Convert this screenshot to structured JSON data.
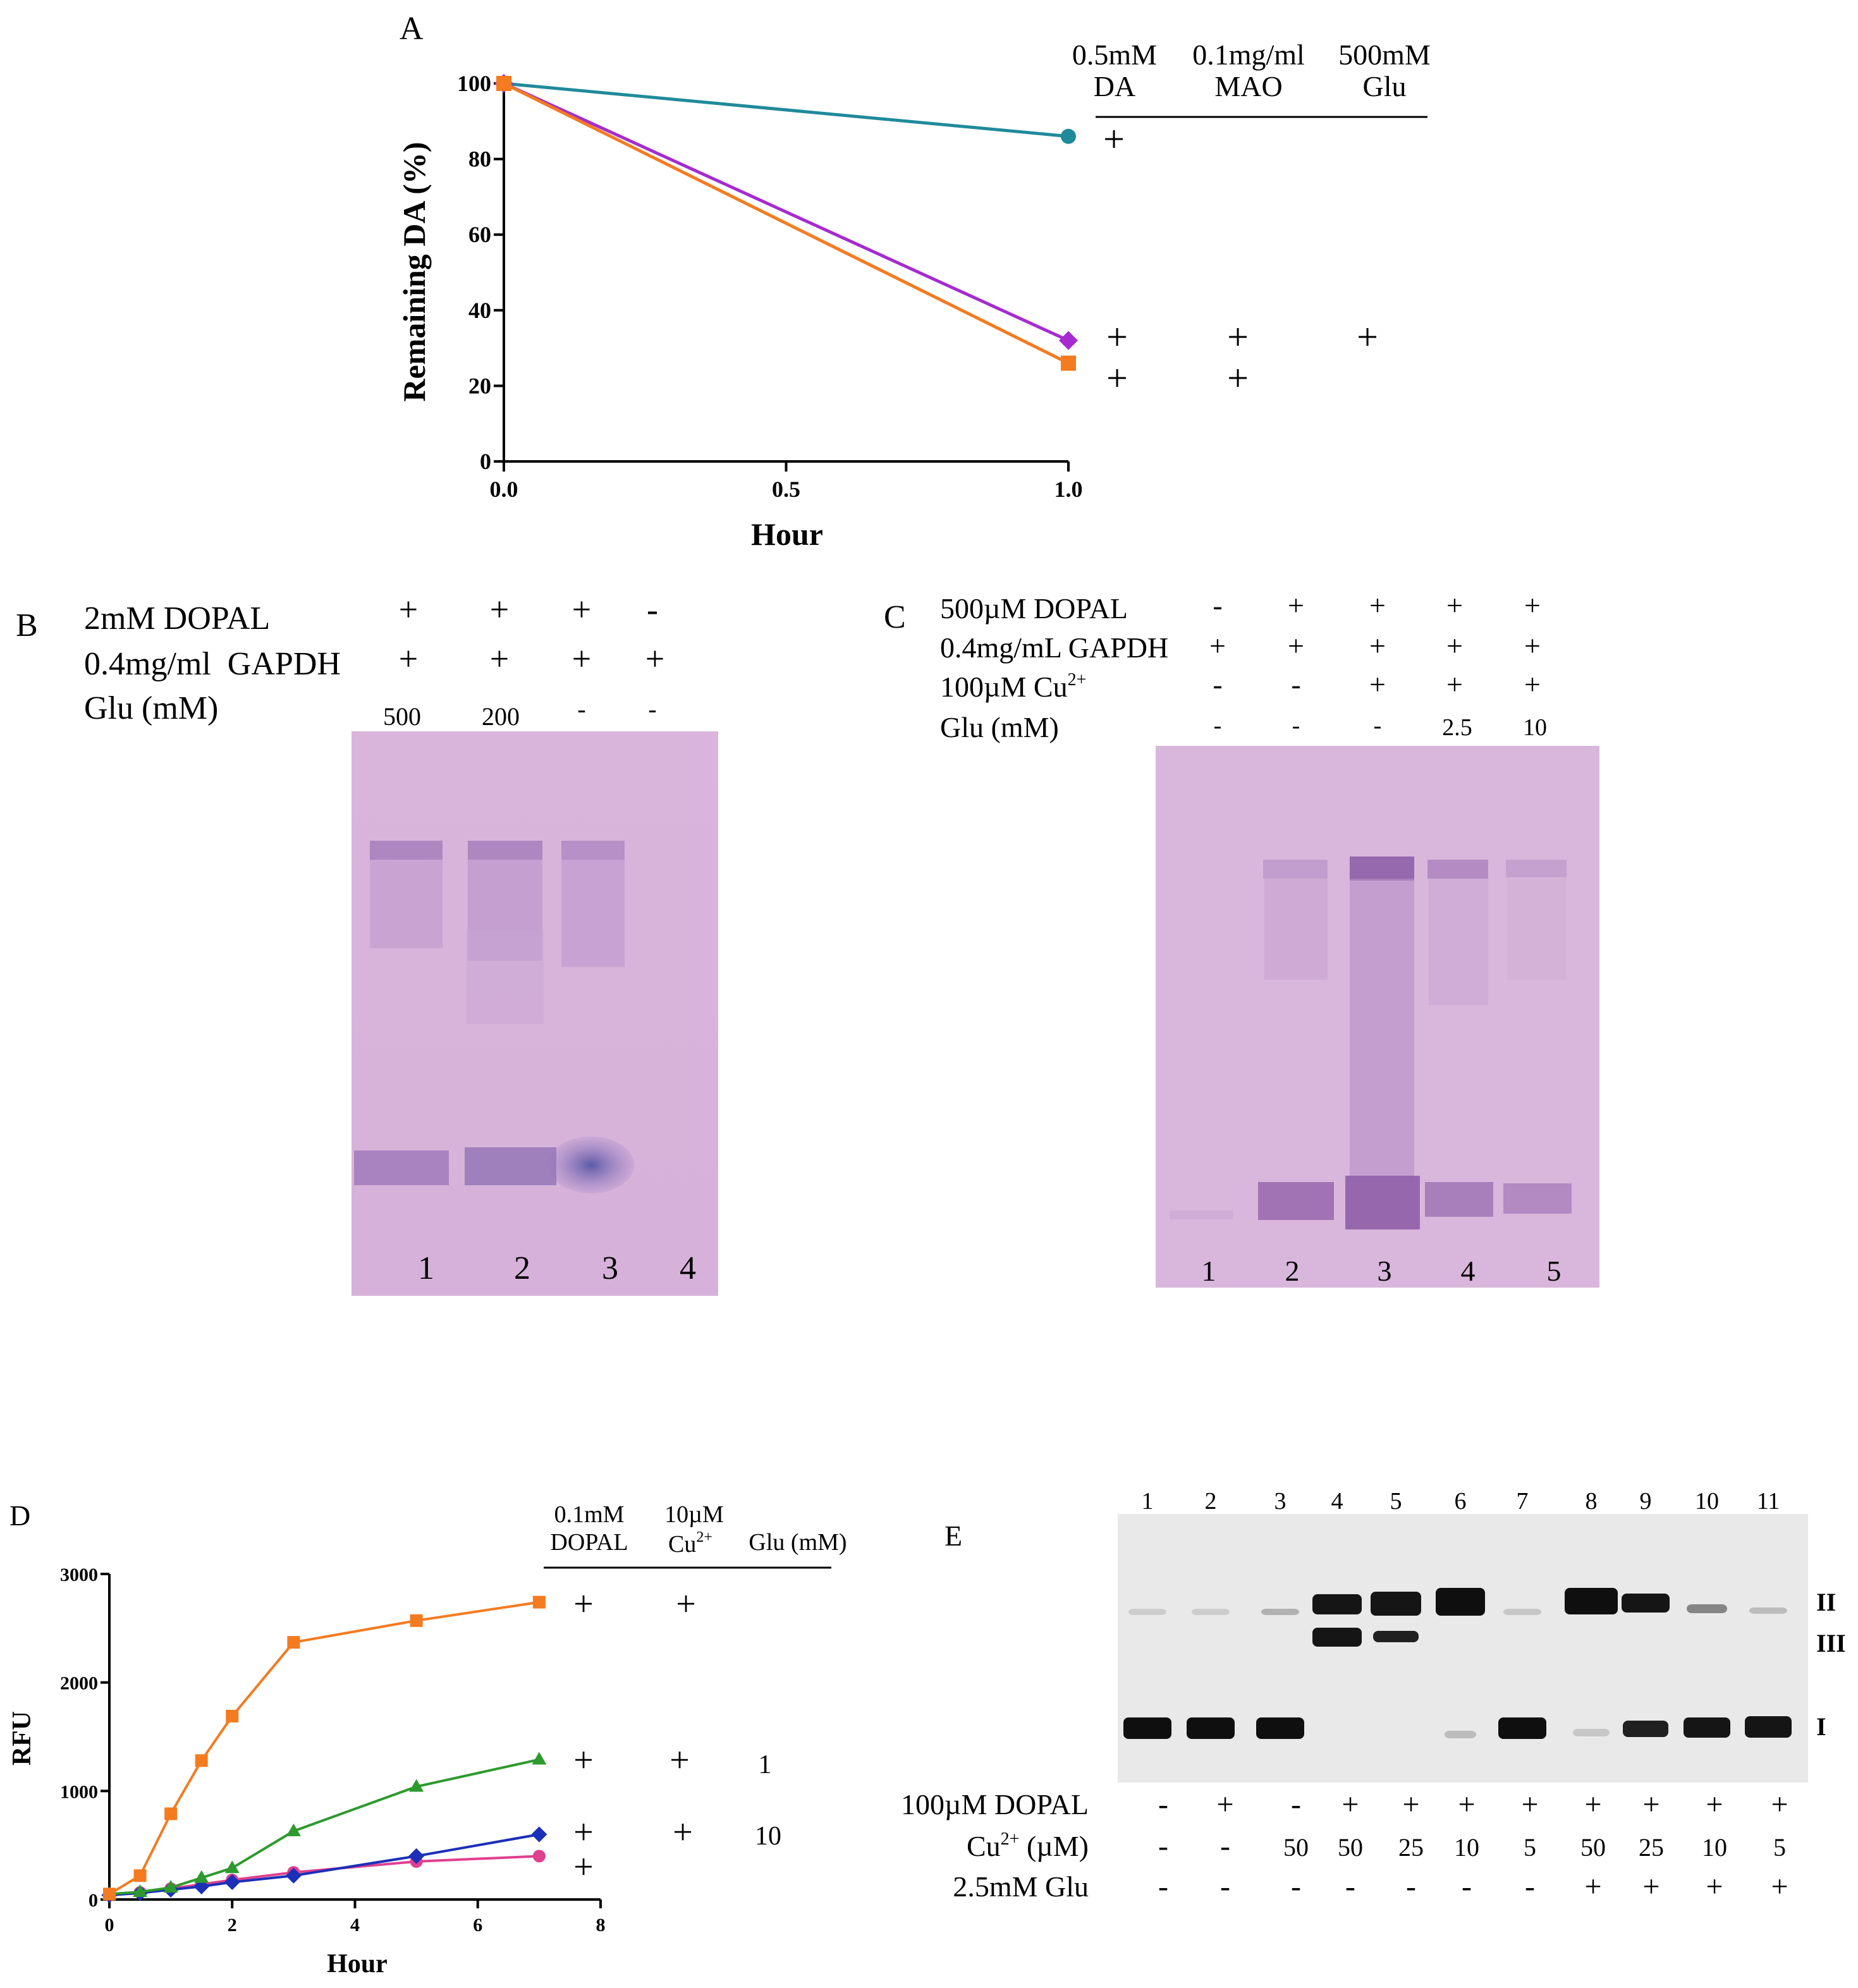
{
  "panelA": {
    "letter": "A",
    "header": {
      "col1": [
        "0.5mM",
        "DA"
      ],
      "col2": [
        "0.1mg/ml",
        "MAO"
      ],
      "col3": [
        "500mM",
        "Glu"
      ]
    },
    "rows": [
      [
        "+",
        "",
        ""
      ],
      [
        "+",
        "+",
        "+"
      ],
      [
        "+",
        "+",
        ""
      ]
    ],
    "chart_data": {
      "type": "line",
      "xlabel": "Hour",
      "ylabel": "Remaining DA (%)",
      "xlim": [
        0,
        1.0
      ],
      "ylim": [
        0,
        100
      ],
      "xticks": [
        "0.0",
        "0.5",
        "1.0"
      ],
      "yticks": [
        "0",
        "20",
        "40",
        "60",
        "80",
        "100"
      ],
      "series": [
        {
          "name": "DA",
          "color": "#1f8a9a",
          "marker": "circle",
          "x": [
            0,
            1.0
          ],
          "y": [
            100,
            86
          ]
        },
        {
          "name": "DA + MAO + Glu",
          "color": "#a52bd1",
          "marker": "diamond",
          "x": [
            0,
            1.0
          ],
          "y": [
            100,
            32
          ]
        },
        {
          "name": "DA + MAO",
          "color": "#f47b20",
          "marker": "square",
          "x": [
            0,
            1.0
          ],
          "y": [
            100,
            26
          ]
        }
      ]
    }
  },
  "panelB": {
    "letter": "B",
    "row_labels": [
      "2mM DOPAL",
      "0.4mg/ml  GAPDH",
      "Glu (mM)"
    ],
    "columns": [
      [
        "+",
        "+",
        "500"
      ],
      [
        "+",
        "+",
        "200"
      ],
      [
        "+",
        "+",
        "-"
      ],
      [
        "-",
        "+",
        "-"
      ]
    ],
    "lanes": [
      "1",
      "2",
      "3",
      "4"
    ]
  },
  "panelC": {
    "letter": "C",
    "row_labels": [
      "500µM DOPAL",
      "0.4mg/mL GAPDH",
      "100µM Cu",
      "Glu (mM)"
    ],
    "cu_superscript": "2+",
    "columns": [
      [
        "-",
        "+",
        "-",
        "-"
      ],
      [
        "+",
        "+",
        "-",
        "-"
      ],
      [
        "+",
        "+",
        "+",
        "-"
      ],
      [
        "+",
        "+",
        "+",
        "2.5"
      ],
      [
        "+",
        "+",
        "+",
        "10"
      ]
    ],
    "lanes": [
      "1",
      "2",
      "3",
      "4",
      "5"
    ]
  },
  "panelD": {
    "letter": "D",
    "header": {
      "col1": [
        "0.1mM",
        "DOPAL"
      ],
      "col2": [
        "10µM",
        "Cu"
      ],
      "col2_sup": "2+",
      "col3": "Glu (mM)"
    },
    "rows": [
      [
        "+",
        "+",
        ""
      ],
      [
        "+",
        "+",
        "1"
      ],
      [
        "+",
        "+",
        "10"
      ],
      [
        "+",
        "",
        ""
      ]
    ],
    "chart_data": {
      "type": "line",
      "xlabel": "Hour",
      "ylabel": "RFU",
      "xlim": [
        0,
        8
      ],
      "ylim": [
        0,
        3000
      ],
      "xticks": [
        "0",
        "2",
        "4",
        "6",
        "8"
      ],
      "yticks": [
        "0",
        "1000",
        "2000",
        "3000"
      ],
      "series": [
        {
          "name": "DOPAL + Cu",
          "color": "#f47b20",
          "marker": "square",
          "x": [
            0,
            0.5,
            1,
            1.5,
            2,
            3,
            5,
            7
          ],
          "y": [
            50,
            220,
            790,
            1280,
            1690,
            2370,
            2570,
            2740
          ]
        },
        {
          "name": "DOPAL + Cu + 1mM Glu",
          "color": "#2e9a2e",
          "marker": "triangle",
          "x": [
            0,
            0.5,
            1,
            1.5,
            2,
            3,
            5,
            7
          ],
          "y": [
            50,
            70,
            110,
            200,
            290,
            630,
            1040,
            1290
          ]
        },
        {
          "name": "DOPAL + Cu + 10mM Glu",
          "color": "#1c2fb8",
          "marker": "diamond",
          "x": [
            0,
            0.5,
            1,
            1.5,
            2,
            3,
            5,
            7
          ],
          "y": [
            40,
            60,
            90,
            120,
            160,
            220,
            400,
            600
          ]
        },
        {
          "name": "DOPAL",
          "color": "#e0408f",
          "marker": "circle",
          "x": [
            0,
            0.5,
            1,
            1.5,
            2,
            3,
            5,
            7
          ],
          "y": [
            40,
            65,
            100,
            140,
            180,
            250,
            350,
            400
          ]
        }
      ]
    }
  },
  "panelE": {
    "letter": "E",
    "lanes": [
      "1",
      "2",
      "3",
      "4",
      "5",
      "6",
      "7",
      "8",
      "9",
      "10",
      "11"
    ],
    "band_labels": [
      "II",
      "III",
      "I"
    ],
    "row_labels": [
      "100µM DOPAL",
      "Cu",
      "2.5mM Glu"
    ],
    "cu_superscript": "2+",
    "cu_unit": " (µM)",
    "rows": [
      [
        "-",
        "+",
        "-",
        "+",
        "+",
        "+",
        "+",
        "+",
        "+",
        "+",
        "+"
      ],
      [
        "-",
        "-",
        "50",
        "50",
        "25",
        "10",
        "5",
        "50",
        "25",
        "10",
        "5"
      ],
      [
        "-",
        "-",
        "-",
        "-",
        "-",
        "-",
        "-",
        "+",
        "+",
        "+",
        "+"
      ]
    ]
  }
}
